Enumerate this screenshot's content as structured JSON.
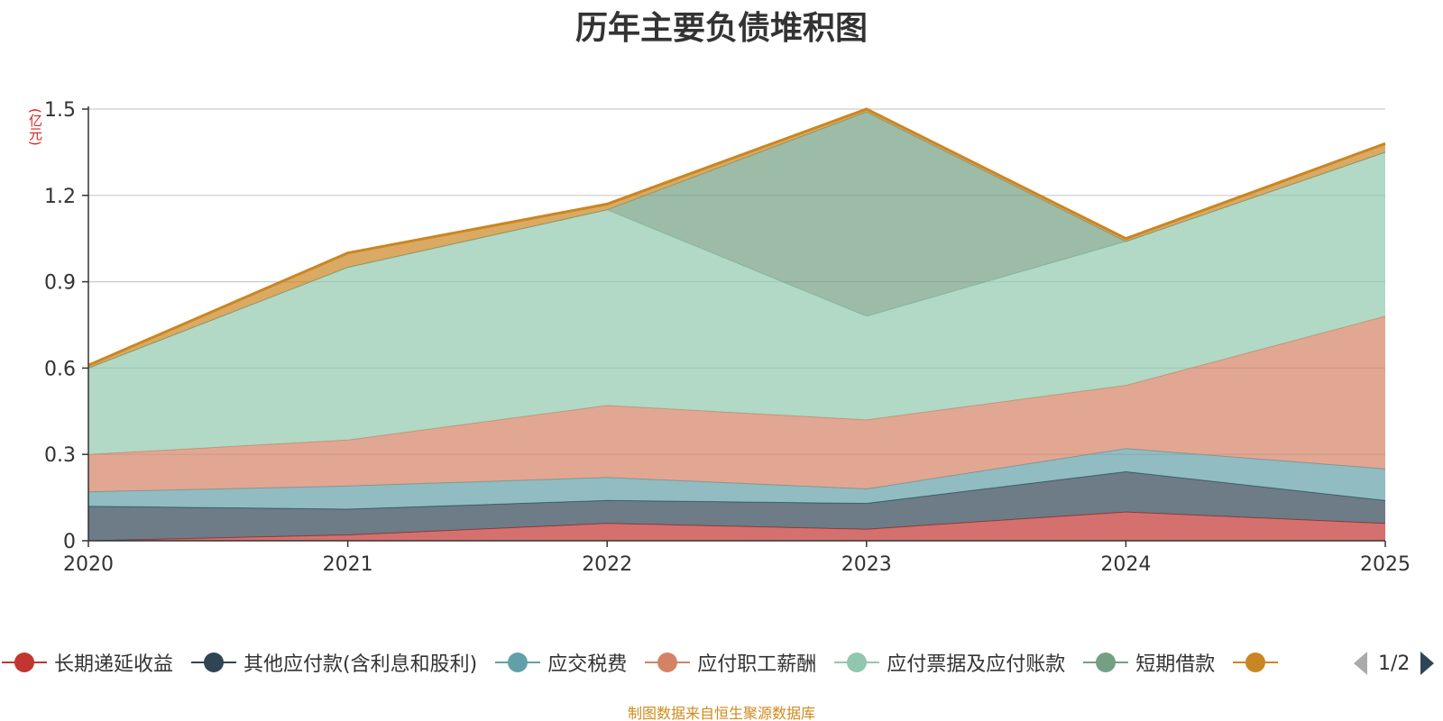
{
  "title": "历年主要负债堆积图",
  "unit_label": "(亿元)",
  "source_note": "制图数据来自恒生聚源数据库",
  "legend_pager": {
    "text": "1/2",
    "prev_icon": "triangle-left-icon",
    "next_icon": "triangle-right-icon"
  },
  "chart_data": {
    "type": "area",
    "stacked": true,
    "x": [
      "2020",
      "2021",
      "2022",
      "2023",
      "2024",
      "2025"
    ],
    "y_ticks": [
      "0",
      "0.3",
      "0.6",
      "0.9",
      "1.2",
      "1.5"
    ],
    "ylim": [
      0,
      1.5
    ],
    "grid": true,
    "legend_position": "bottom",
    "series": [
      {
        "name": "长期递延收益",
        "color": "#c23531",
        "values": [
          0.0,
          0.02,
          0.06,
          0.04,
          0.1,
          0.06
        ]
      },
      {
        "name": "其他应付款(含利息和股利)",
        "color": "#2f4554",
        "values": [
          0.12,
          0.09,
          0.08,
          0.09,
          0.14,
          0.08
        ]
      },
      {
        "name": "应交税费",
        "color": "#61a0a8",
        "values": [
          0.05,
          0.08,
          0.08,
          0.05,
          0.08,
          0.11
        ]
      },
      {
        "name": "应付职工薪酬",
        "color": "#d48265",
        "values": [
          0.13,
          0.16,
          0.25,
          0.24,
          0.22,
          0.53
        ]
      },
      {
        "name": "应付票据及应付账款",
        "color": "#91c7ae",
        "values": [
          0.3,
          0.6,
          0.68,
          0.36,
          0.5,
          0.57
        ]
      },
      {
        "name": "短期借款",
        "color": "#749f83",
        "values": [
          0.0,
          0.0,
          0.0,
          0.71,
          0.0,
          0.0
        ]
      },
      {
        "name": "",
        "color": "#ca8622",
        "values": [
          0.01,
          0.05,
          0.02,
          0.01,
          0.01,
          0.03
        ]
      }
    ]
  }
}
